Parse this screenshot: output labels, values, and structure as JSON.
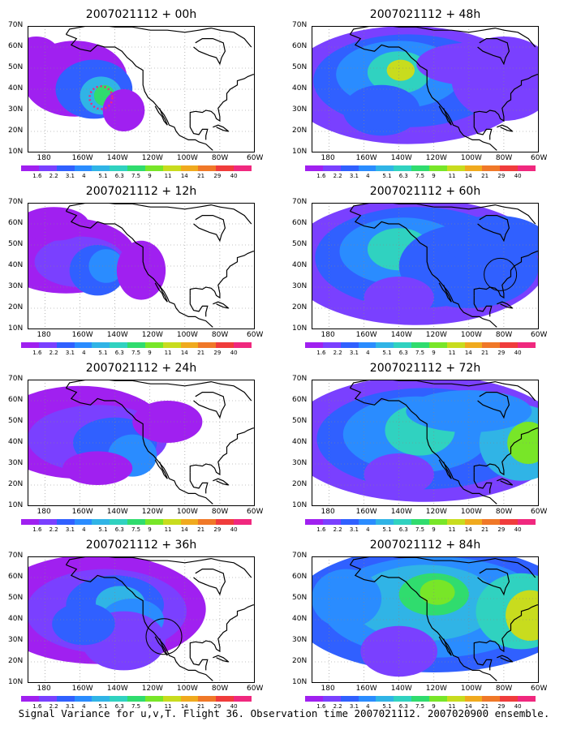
{
  "footer": "Signal Variance for u,v,T. Flight 36. Observation time 2007021112. 2007020900 ensemble.",
  "colorbar": {
    "labels": [
      "1.6",
      "2.2",
      "3.1",
      "4",
      "5.1",
      "6.3",
      "7.5",
      "9",
      "11",
      "14",
      "21",
      "29",
      "40"
    ],
    "colors": [
      "#a020f0",
      "#7a40ff",
      "#3060ff",
      "#2a8cff",
      "#30b4e6",
      "#30d2c0",
      "#30dc6e",
      "#78e628",
      "#c8dc1e",
      "#f0aa1e",
      "#f07828",
      "#f03c3c",
      "#f0287e"
    ]
  },
  "axes": {
    "yticks": [
      "70N",
      "60N",
      "50N",
      "40N",
      "30N",
      "20N",
      "10N"
    ],
    "xticks": [
      "180",
      "160W",
      "140W",
      "120W",
      "100W",
      "80W",
      "60W"
    ]
  },
  "chart_data": [
    {
      "type": "heatmap",
      "title": "2007021112 + 00h",
      "lead_hours": 0,
      "xlim": [
        "170E",
        "60W"
      ],
      "ylim": [
        "10N",
        "70N"
      ]
    },
    {
      "type": "heatmap",
      "title": "2007021112 + 12h",
      "lead_hours": 12,
      "xlim": [
        "170E",
        "60W"
      ],
      "ylim": [
        "10N",
        "70N"
      ]
    },
    {
      "type": "heatmap",
      "title": "2007021112 + 24h",
      "lead_hours": 24,
      "xlim": [
        "170E",
        "60W"
      ],
      "ylim": [
        "10N",
        "70N"
      ]
    },
    {
      "type": "heatmap",
      "title": "2007021112 + 36h",
      "lead_hours": 36,
      "xlim": [
        "170E",
        "60W"
      ],
      "ylim": [
        "10N",
        "70N"
      ]
    },
    {
      "type": "heatmap",
      "title": "2007021112 + 48h",
      "lead_hours": 48,
      "xlim": [
        "170E",
        "60W"
      ],
      "ylim": [
        "10N",
        "70N"
      ]
    },
    {
      "type": "heatmap",
      "title": "2007021112 + 60h",
      "lead_hours": 60,
      "xlim": [
        "170E",
        "60W"
      ],
      "ylim": [
        "10N",
        "70N"
      ]
    },
    {
      "type": "heatmap",
      "title": "2007021112 + 72h",
      "lead_hours": 72,
      "xlim": [
        "170E",
        "60W"
      ],
      "ylim": [
        "10N",
        "70N"
      ]
    },
    {
      "type": "heatmap",
      "title": "2007021112 + 84h",
      "lead_hours": 84,
      "xlim": [
        "170E",
        "60W"
      ],
      "ylim": [
        "10N",
        "70N"
      ]
    }
  ]
}
